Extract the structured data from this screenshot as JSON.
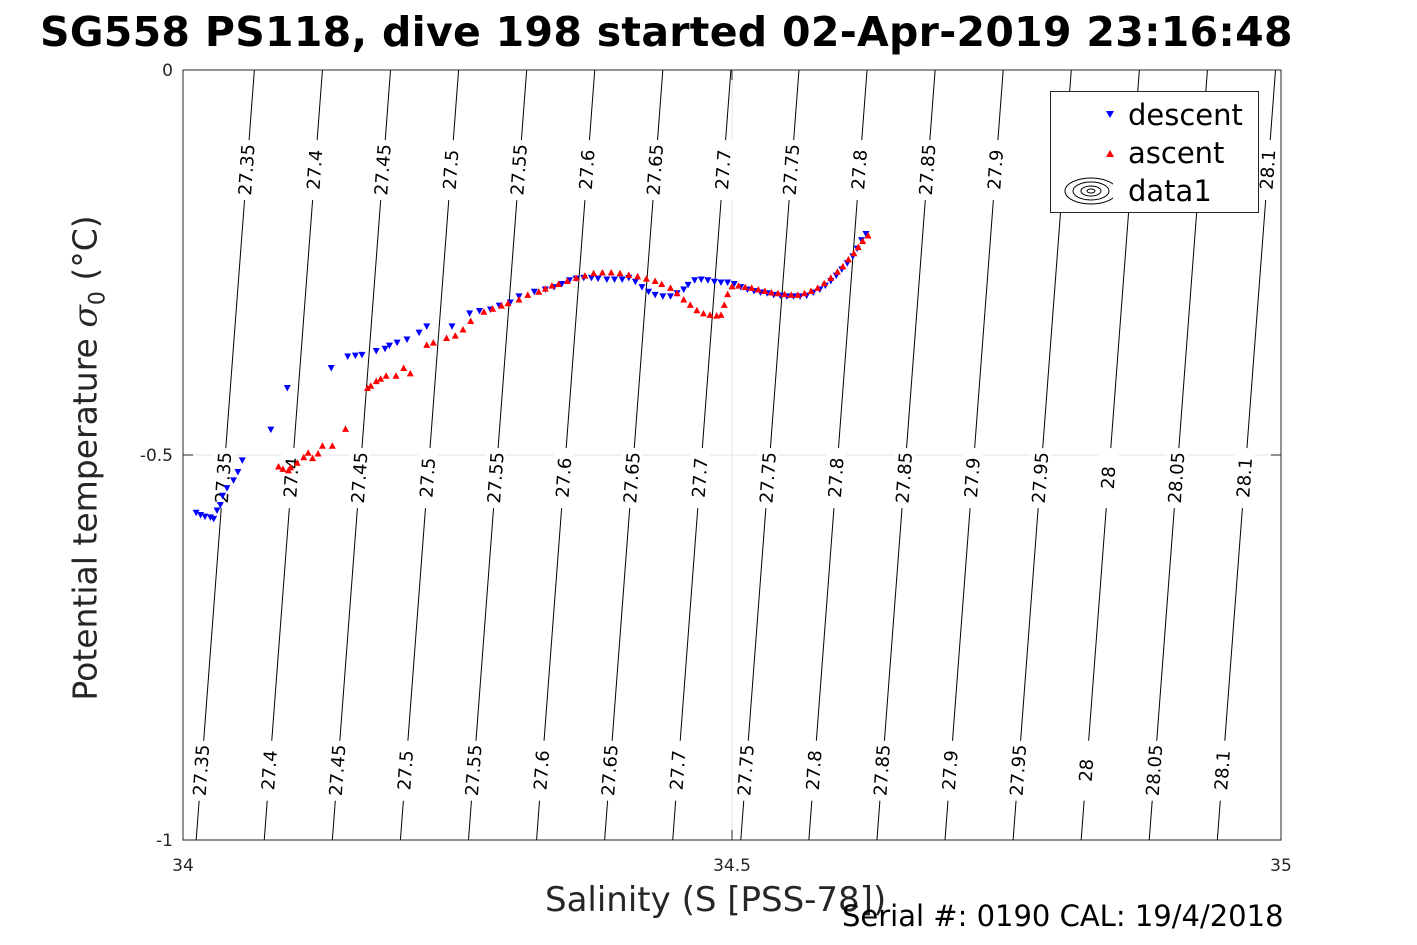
{
  "title": "SG558 PS118, dive 198 started 02-Apr-2019 23:16:48",
  "footer": "Serial #: 0190  CAL: 19/4/2018",
  "legend_entries": [
    "descent",
    "ascent",
    "data1"
  ],
  "colors": {
    "descent": "#0000ff",
    "ascent": "#ff0000",
    "contour": "#000000",
    "grid": "#e6e6e6"
  },
  "chart_data": {
    "type": "scatter",
    "title": "SG558 PS118, dive 198 started 02-Apr-2019 23:16:48",
    "xlabel": "Salinity (S [PSS-78])",
    "ylabel_main": "Potential temperature ",
    "ylabel_sym": "σ",
    "ylabel_sub": "0",
    "ylabel_unit": " (°C)",
    "xlim": [
      34,
      35
    ],
    "ylim": [
      -1,
      0
    ],
    "xticks": [
      34,
      34.5,
      35
    ],
    "xtick_labels": [
      "34",
      "34.5",
      "35"
    ],
    "yticks": [
      0,
      -0.5,
      -1
    ],
    "ytick_labels": [
      "0",
      "-0.5",
      "-1"
    ],
    "grid": true,
    "legend_position": "top-right",
    "contours": [
      {
        "level": "27.35",
        "top_s": 34.065,
        "bottom_s": 34.012
      },
      {
        "level": "27.4",
        "top_s": 34.127,
        "bottom_s": 34.074
      },
      {
        "level": "27.45",
        "top_s": 34.189,
        "bottom_s": 34.136
      },
      {
        "level": "27.5",
        "top_s": 34.251,
        "bottom_s": 34.198
      },
      {
        "level": "27.55",
        "top_s": 34.313,
        "bottom_s": 34.26
      },
      {
        "level": "27.6",
        "top_s": 34.375,
        "bottom_s": 34.322
      },
      {
        "level": "27.65",
        "top_s": 34.437,
        "bottom_s": 34.384
      },
      {
        "level": "27.7",
        "top_s": 34.499,
        "bottom_s": 34.446
      },
      {
        "level": "27.75",
        "top_s": 34.561,
        "bottom_s": 34.508
      },
      {
        "level": "27.8",
        "top_s": 34.623,
        "bottom_s": 34.57
      },
      {
        "level": "27.85",
        "top_s": 34.685,
        "bottom_s": 34.632
      },
      {
        "level": "27.9",
        "top_s": 34.747,
        "bottom_s": 34.694
      },
      {
        "level": "27.95",
        "top_s": 34.809,
        "bottom_s": 34.756
      },
      {
        "level": "28",
        "top_s": 34.871,
        "bottom_s": 34.818
      },
      {
        "level": "28.05",
        "top_s": 34.933,
        "bottom_s": 34.88
      },
      {
        "level": "28.1",
        "top_s": 34.995,
        "bottom_s": 34.942
      }
    ],
    "contour_label_rows": [
      {
        "y": -0.13,
        "levels": [
          "27.35",
          "27.4",
          "27.45",
          "27.5",
          "27.55",
          "27.6",
          "27.65",
          "27.7",
          "27.75",
          "27.8",
          "27.85",
          "27.9",
          "27.95",
          "28",
          "28.05",
          "28.1"
        ]
      },
      {
        "y": -0.53,
        "levels": [
          "27.35",
          "27.4",
          "27.45",
          "27.5",
          "27.55",
          "27.6",
          "27.65",
          "27.7",
          "27.75",
          "27.8",
          "27.85",
          "27.9",
          "27.95",
          "28",
          "28.05",
          "28.1"
        ]
      },
      {
        "y": -0.91,
        "levels": [
          "27.35",
          "27.4",
          "27.45",
          "27.5",
          "27.55",
          "27.6",
          "27.65",
          "27.7",
          "27.75",
          "27.8",
          "27.85",
          "27.9",
          "27.95",
          "28",
          "28.05",
          "28.1"
        ]
      }
    ],
    "series": [
      {
        "name": "descent",
        "marker": "triangle-down",
        "color": "#0000ff",
        "points": [
          [
            34.012,
            -0.575
          ],
          [
            34.016,
            -0.578
          ],
          [
            34.02,
            -0.58
          ],
          [
            34.025,
            -0.581
          ],
          [
            34.028,
            -0.583
          ],
          [
            34.031,
            -0.572
          ],
          [
            34.034,
            -0.565
          ],
          [
            34.036,
            -0.553
          ],
          [
            34.04,
            -0.543
          ],
          [
            34.046,
            -0.533
          ],
          [
            34.05,
            -0.522
          ],
          [
            34.054,
            -0.507
          ],
          [
            34.08,
            -0.467
          ],
          [
            34.095,
            -0.413
          ],
          [
            34.135,
            -0.387
          ],
          [
            34.15,
            -0.372
          ],
          [
            34.157,
            -0.371
          ],
          [
            34.163,
            -0.37
          ],
          [
            34.176,
            -0.365
          ],
          [
            34.184,
            -0.362
          ],
          [
            34.188,
            -0.358
          ],
          [
            34.195,
            -0.354
          ],
          [
            34.204,
            -0.35
          ],
          [
            34.215,
            -0.341
          ],
          [
            34.222,
            -0.333
          ],
          [
            34.245,
            -0.333
          ],
          [
            34.261,
            -0.316
          ],
          [
            34.27,
            -0.313
          ],
          [
            34.28,
            -0.311
          ],
          [
            34.288,
            -0.306
          ],
          [
            34.298,
            -0.302
          ],
          [
            34.306,
            -0.294
          ],
          [
            34.32,
            -0.288
          ],
          [
            34.33,
            -0.285
          ],
          [
            34.338,
            -0.282
          ],
          [
            34.345,
            -0.278
          ],
          [
            34.352,
            -0.273
          ],
          [
            34.358,
            -0.271
          ],
          [
            34.365,
            -0.27
          ],
          [
            34.372,
            -0.27
          ],
          [
            34.378,
            -0.271
          ],
          [
            34.386,
            -0.272
          ],
          [
            34.393,
            -0.272
          ],
          [
            34.4,
            -0.272
          ],
          [
            34.406,
            -0.27
          ],
          [
            34.412,
            -0.275
          ],
          [
            34.418,
            -0.282
          ],
          [
            34.424,
            -0.288
          ],
          [
            34.43,
            -0.292
          ],
          [
            34.437,
            -0.294
          ],
          [
            34.444,
            -0.294
          ],
          [
            34.45,
            -0.29
          ],
          [
            34.456,
            -0.285
          ],
          [
            34.46,
            -0.279
          ],
          [
            34.466,
            -0.273
          ],
          [
            34.472,
            -0.272
          ],
          [
            34.478,
            -0.273
          ],
          [
            34.484,
            -0.275
          ],
          [
            34.49,
            -0.276
          ],
          [
            34.496,
            -0.276
          ],
          [
            34.502,
            -0.278
          ],
          [
            34.508,
            -0.282
          ],
          [
            34.514,
            -0.285
          ],
          [
            34.52,
            -0.287
          ],
          [
            34.526,
            -0.289
          ],
          [
            34.532,
            -0.29
          ],
          [
            34.538,
            -0.292
          ],
          [
            34.544,
            -0.293
          ],
          [
            34.55,
            -0.294
          ],
          [
            34.556,
            -0.294
          ],
          [
            34.562,
            -0.294
          ],
          [
            34.568,
            -0.293
          ],
          [
            34.574,
            -0.289
          ],
          [
            34.58,
            -0.285
          ],
          [
            34.585,
            -0.28
          ],
          [
            34.59,
            -0.274
          ],
          [
            34.595,
            -0.267
          ],
          [
            34.6,
            -0.259
          ],
          [
            34.605,
            -0.251
          ],
          [
            34.61,
            -0.242
          ],
          [
            34.614,
            -0.232
          ],
          [
            34.618,
            -0.221
          ],
          [
            34.622,
            -0.213
          ]
        ]
      },
      {
        "name": "ascent",
        "marker": "triangle-up",
        "color": "#ff0000",
        "points": [
          [
            34.087,
            -0.515
          ],
          [
            34.091,
            -0.518
          ],
          [
            34.096,
            -0.52
          ],
          [
            34.098,
            -0.516
          ],
          [
            34.104,
            -0.51
          ],
          [
            34.11,
            -0.503
          ],
          [
            34.114,
            -0.497
          ],
          [
            34.118,
            -0.504
          ],
          [
            34.123,
            -0.498
          ],
          [
            34.127,
            -0.488
          ],
          [
            34.136,
            -0.488
          ],
          [
            34.148,
            -0.466
          ],
          [
            34.168,
            -0.413
          ],
          [
            34.171,
            -0.41
          ],
          [
            34.176,
            -0.404
          ],
          [
            34.18,
            -0.401
          ],
          [
            34.185,
            -0.397
          ],
          [
            34.194,
            -0.397
          ],
          [
            34.201,
            -0.387
          ],
          [
            34.207,
            -0.394
          ],
          [
            34.222,
            -0.357
          ],
          [
            34.228,
            -0.354
          ],
          [
            34.24,
            -0.348
          ],
          [
            34.248,
            -0.345
          ],
          [
            34.255,
            -0.337
          ],
          [
            34.262,
            -0.326
          ],
          [
            34.274,
            -0.314
          ],
          [
            34.282,
            -0.31
          ],
          [
            34.29,
            -0.306
          ],
          [
            34.296,
            -0.303
          ],
          [
            34.306,
            -0.298
          ],
          [
            34.314,
            -0.292
          ],
          [
            34.324,
            -0.288
          ],
          [
            34.33,
            -0.284
          ],
          [
            34.336,
            -0.28
          ],
          [
            34.342,
            -0.278
          ],
          [
            34.35,
            -0.274
          ],
          [
            34.358,
            -0.27
          ],
          [
            34.366,
            -0.267
          ],
          [
            34.374,
            -0.264
          ],
          [
            34.382,
            -0.263
          ],
          [
            34.39,
            -0.263
          ],
          [
            34.398,
            -0.264
          ],
          [
            34.406,
            -0.266
          ],
          [
            34.414,
            -0.268
          ],
          [
            34.422,
            -0.271
          ],
          [
            34.43,
            -0.274
          ],
          [
            34.436,
            -0.278
          ],
          [
            34.444,
            -0.283
          ],
          [
            34.45,
            -0.29
          ],
          [
            34.456,
            -0.298
          ],
          [
            34.462,
            -0.305
          ],
          [
            34.468,
            -0.312
          ],
          [
            34.474,
            -0.316
          ],
          [
            34.48,
            -0.318
          ],
          [
            34.486,
            -0.319
          ],
          [
            34.49,
            -0.318
          ],
          [
            34.493,
            -0.305
          ],
          [
            34.496,
            -0.291
          ],
          [
            34.5,
            -0.281
          ],
          [
            34.506,
            -0.28
          ],
          [
            34.512,
            -0.282
          ],
          [
            34.518,
            -0.283
          ],
          [
            34.524,
            -0.285
          ],
          [
            34.53,
            -0.287
          ],
          [
            34.536,
            -0.289
          ],
          [
            34.542,
            -0.29
          ],
          [
            34.548,
            -0.291
          ],
          [
            34.554,
            -0.292
          ],
          [
            34.56,
            -0.292
          ],
          [
            34.566,
            -0.29
          ],
          [
            34.572,
            -0.287
          ],
          [
            34.578,
            -0.283
          ],
          [
            34.584,
            -0.277
          ],
          [
            34.59,
            -0.27
          ],
          [
            34.596,
            -0.262
          ],
          [
            34.601,
            -0.255
          ],
          [
            34.606,
            -0.246
          ],
          [
            34.611,
            -0.238
          ],
          [
            34.615,
            -0.23
          ],
          [
            34.619,
            -0.222
          ],
          [
            34.624,
            -0.215
          ]
        ]
      }
    ]
  }
}
